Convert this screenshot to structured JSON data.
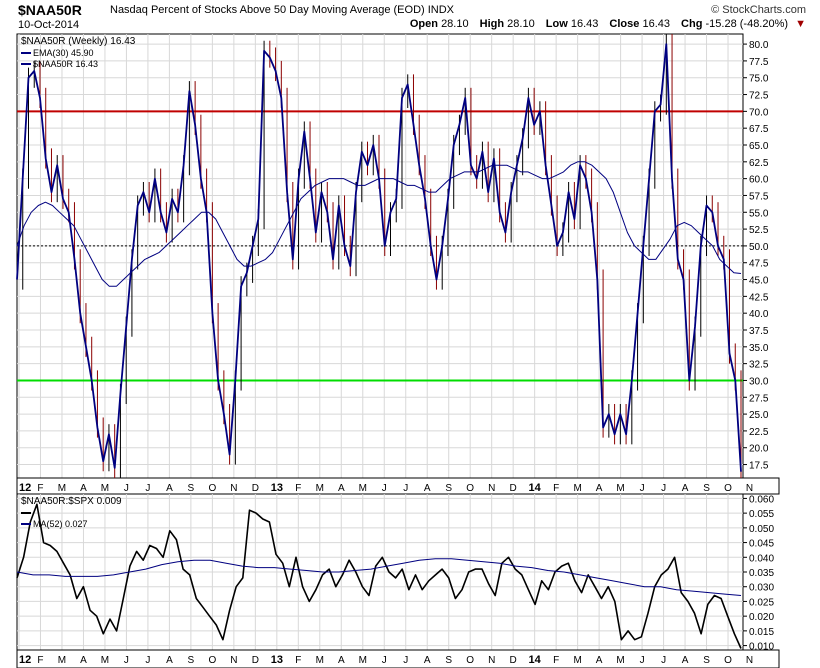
{
  "header": {
    "symbol": "$NAA50R",
    "description": "Nasdaq Percent of Stocks Above 50 Day Moving Average (EOD)  INDX",
    "date": "10-Oct-2014",
    "brand": "© StockCharts.com",
    "open_label": "Open",
    "open": "28.10",
    "high_label": "High",
    "high": "28.10",
    "low_label": "Low",
    "low": "16.43",
    "close_label": "Close",
    "close": "16.43",
    "chg_label": "Chg",
    "chg": "-15.28 (-48.20%)"
  },
  "colors": {
    "price_line": "#000080",
    "bar_up": "#000000",
    "bar_down": "#8b0000",
    "ema": "#000080",
    "overbought": "#c00000",
    "oversold": "#00dd00",
    "grid": "#d8d8d8",
    "ratio_line": "#000000",
    "ratio_ma": "#000080"
  },
  "chart_data": [
    {
      "type": "line",
      "title": "$NAA50R (Weekly) 16.43",
      "legend": [
        {
          "label": "EMA(30) 45.90",
          "color": "#000080"
        },
        {
          "label": "$NAA50R 16.43",
          "color": "#000080"
        }
      ],
      "ylim": [
        15.5,
        81.5
      ],
      "yticks": [
        "80.0",
        "77.5",
        "75.0",
        "72.5",
        "70.0",
        "67.5",
        "65.0",
        "62.5",
        "60.0",
        "57.5",
        "55.0",
        "52.5",
        "50.0",
        "47.5",
        "45.0",
        "42.5",
        "40.0",
        "37.5",
        "35.0",
        "32.5",
        "30.0",
        "27.5",
        "25.0",
        "22.5",
        "20.0",
        "17.5"
      ],
      "ytick_values": [
        80.0,
        77.5,
        75.0,
        72.5,
        70.0,
        67.5,
        65.0,
        62.5,
        60.0,
        57.5,
        55.0,
        52.5,
        50.0,
        47.5,
        45.0,
        42.5,
        40.0,
        37.5,
        35.0,
        32.5,
        30.0,
        27.5,
        25.0,
        22.5,
        20.0,
        17.5
      ],
      "reference_lines": [
        {
          "value": 70.0,
          "color": "#c00000",
          "style": "solid"
        },
        {
          "value": 50.0,
          "color": "#000000",
          "style": "dotted"
        },
        {
          "value": 30.0,
          "color": "#00dd00",
          "style": "solid"
        }
      ],
      "x_month_labels": [
        "12",
        "F",
        "M",
        "A",
        "M",
        "J",
        "J",
        "A",
        "S",
        "O",
        "N",
        "D",
        "13",
        "F",
        "M",
        "A",
        "M",
        "J",
        "J",
        "A",
        "S",
        "O",
        "N",
        "D",
        "14",
        "F",
        "M",
        "A",
        "M",
        "J",
        "J",
        "A",
        "S",
        "O",
        "N"
      ],
      "series": [
        {
          "name": "$NAA50R",
          "color": "#000080",
          "values": [
            45,
            60,
            75,
            76,
            72,
            63,
            58,
            62,
            57,
            55,
            48,
            40,
            35,
            30,
            23,
            18,
            22,
            17,
            28,
            38,
            48,
            56,
            58,
            55,
            60,
            55,
            52,
            57,
            55,
            62,
            73,
            68,
            60,
            55,
            40,
            30,
            25,
            19,
            30,
            44,
            46,
            50,
            54,
            79,
            78,
            76,
            72,
            58,
            48,
            60,
            67,
            60,
            52,
            58,
            55,
            48,
            56,
            50,
            47,
            58,
            64,
            62,
            65,
            60,
            50,
            55,
            57,
            72,
            74,
            68,
            62,
            57,
            50,
            45,
            50,
            57,
            65,
            68,
            72,
            62,
            60,
            64,
            58,
            63,
            55,
            52,
            58,
            62,
            66,
            72,
            68,
            70,
            62,
            56,
            50,
            52,
            58,
            54,
            62,
            60,
            55,
            45,
            23,
            25,
            22,
            25,
            22,
            30,
            40,
            50,
            60,
            70,
            71,
            80,
            60,
            48,
            45,
            30,
            38,
            50,
            56,
            55,
            50,
            48,
            34,
            30,
            16.43
          ]
        },
        {
          "name": "EMA(30)",
          "color": "#000080",
          "values": [
            50,
            53,
            55,
            56,
            56.5,
            56,
            55,
            54,
            53,
            51,
            49,
            47,
            45,
            44,
            44,
            45,
            46,
            47,
            48,
            48.5,
            49,
            50,
            51,
            52,
            53,
            54,
            55,
            55,
            54,
            52,
            50,
            48,
            47,
            47,
            47.5,
            48,
            49,
            51,
            53,
            55,
            57,
            58,
            59,
            59.5,
            60,
            60,
            60,
            59.5,
            59,
            59,
            59.5,
            60,
            60,
            60,
            59.5,
            59,
            59,
            58.5,
            58,
            58,
            59,
            60,
            60.5,
            61,
            61,
            61,
            61.5,
            62,
            62,
            62,
            61.5,
            61,
            61,
            60.5,
            60,
            60,
            60.5,
            61,
            62,
            62.5,
            62.5,
            62,
            61,
            60,
            58,
            55,
            52,
            50,
            49,
            48,
            48,
            49.5,
            51,
            53,
            53.5,
            53,
            52,
            51,
            50,
            48,
            47,
            46,
            45.9
          ]
        }
      ]
    },
    {
      "type": "line",
      "title": "$NAA50R:$SPX 0.009",
      "legend": [
        {
          "label": "$NAA50R:$SPX 0.009",
          "color": "#000000"
        },
        {
          "label": "MA(52) 0.027",
          "color": "#000080"
        }
      ],
      "ylim": [
        0.0085,
        0.0615
      ],
      "yticks": [
        "0.060",
        "0.055",
        "0.050",
        "0.045",
        "0.040",
        "0.035",
        "0.030",
        "0.025",
        "0.020",
        "0.015",
        "0.010"
      ],
      "ytick_values": [
        0.06,
        0.055,
        0.05,
        0.045,
        0.04,
        0.035,
        0.03,
        0.025,
        0.02,
        0.015,
        0.01
      ],
      "x_month_labels": [
        "12",
        "F",
        "M",
        "A",
        "M",
        "J",
        "J",
        "A",
        "S",
        "O",
        "N",
        "D",
        "13",
        "F",
        "M",
        "A",
        "M",
        "J",
        "J",
        "A",
        "S",
        "O",
        "N",
        "D",
        "14",
        "F",
        "M",
        "A",
        "M",
        "J",
        "J",
        "A",
        "S",
        "O",
        "N"
      ],
      "series": [
        {
          "name": "$NAA50R:$SPX",
          "color": "#000000",
          "values": [
            0.033,
            0.04,
            0.052,
            0.058,
            0.045,
            0.044,
            0.042,
            0.038,
            0.034,
            0.026,
            0.03,
            0.022,
            0.02,
            0.014,
            0.019,
            0.015,
            0.026,
            0.037,
            0.042,
            0.039,
            0.044,
            0.043,
            0.04,
            0.049,
            0.046,
            0.036,
            0.034,
            0.026,
            0.023,
            0.02,
            0.017,
            0.012,
            0.022,
            0.03,
            0.033,
            0.056,
            0.055,
            0.053,
            0.052,
            0.041,
            0.038,
            0.03,
            0.04,
            0.03,
            0.025,
            0.029,
            0.034,
            0.036,
            0.03,
            0.034,
            0.039,
            0.035,
            0.03,
            0.027,
            0.037,
            0.04,
            0.035,
            0.033,
            0.036,
            0.029,
            0.034,
            0.029,
            0.032,
            0.034,
            0.036,
            0.033,
            0.026,
            0.029,
            0.035,
            0.036,
            0.036,
            0.031,
            0.027,
            0.038,
            0.04,
            0.036,
            0.034,
            0.029,
            0.024,
            0.032,
            0.029,
            0.035,
            0.037,
            0.038,
            0.032,
            0.028,
            0.034,
            0.03,
            0.026,
            0.03,
            0.025,
            0.012,
            0.015,
            0.012,
            0.013,
            0.021,
            0.03,
            0.034,
            0.036,
            0.04,
            0.028,
            0.025,
            0.021,
            0.014,
            0.024,
            0.027,
            0.026,
            0.02,
            0.014,
            0.009
          ]
        },
        {
          "name": "MA(52)",
          "color": "#000080",
          "values": [
            0.035,
            0.034,
            0.034,
            0.0335,
            0.0335,
            0.0335,
            0.034,
            0.035,
            0.036,
            0.0375,
            0.0385,
            0.039,
            0.039,
            0.038,
            0.037,
            0.0365,
            0.0365,
            0.036,
            0.0355,
            0.035,
            0.035,
            0.0355,
            0.036,
            0.037,
            0.038,
            0.039,
            0.0395,
            0.0395,
            0.039,
            0.0385,
            0.038,
            0.037,
            0.0365,
            0.0355,
            0.035,
            0.034,
            0.033,
            0.032,
            0.031,
            0.03,
            0.03,
            0.029,
            0.0285,
            0.028,
            0.0275,
            0.027
          ]
        }
      ]
    }
  ]
}
